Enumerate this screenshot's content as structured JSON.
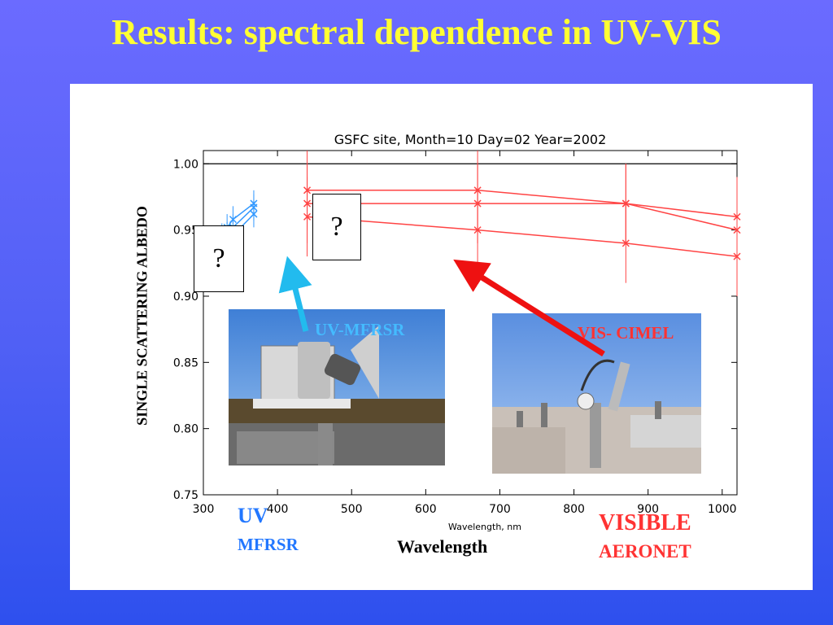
{
  "slide": {
    "title": "Results: spectral dependence in UV-VIS",
    "question_mark": "?",
    "ylabel": "SINGLE SCATTERING ALBEDO",
    "xlabel": "Wavelength",
    "uv_label_1": "UV",
    "uv_label_2": "MFRSR",
    "vis_label_1": "VISIBLE",
    "vis_label_2": "AERONET",
    "uv_instrument": "UV-MFRSR",
    "vis_instrument": "VIS- CIMEL"
  },
  "colors": {
    "title": "#ffff33",
    "uv_series": "#3399ff",
    "vis_series": "#ff4444",
    "arrow_uv": "#22bbee",
    "arrow_vis": "#ee1111",
    "uv_text": "#2277ff",
    "vis_text": "#ff3333"
  },
  "chart_data": {
    "type": "line",
    "title": "GSFC site, Month=10   Day=02   Year=2002",
    "xlabel": "Wavelength, nm",
    "xlim": [
      300,
      1020
    ],
    "ylim": [
      0.75,
      1.01
    ],
    "x_ticks": [
      300,
      400,
      500,
      600,
      700,
      800,
      900,
      1000
    ],
    "y_ticks": [
      0.75,
      0.8,
      0.85,
      0.9,
      0.95,
      1.0
    ],
    "y_tick_labels": [
      "0.75",
      "0.80",
      "0.85",
      "0.90",
      "0.95",
      "1.00"
    ],
    "reference_line": 1.0,
    "uv_series": [
      {
        "x": [
          325,
          332,
          340,
          368
        ],
        "values": [
          0.945,
          0.952,
          0.958,
          0.97
        ]
      },
      {
        "x": [
          325,
          332,
          340,
          368
        ],
        "values": [
          0.937,
          0.946,
          0.952,
          0.967
        ]
      },
      {
        "x": [
          325,
          332,
          340,
          368
        ],
        "values": [
          0.93,
          0.94,
          0.946,
          0.962
        ]
      }
    ],
    "uv_error_halfwidth": 0.01,
    "vis_series": [
      {
        "x": [
          440,
          670,
          870,
          1020
        ],
        "values": [
          0.98,
          0.98,
          0.97,
          0.96
        ]
      },
      {
        "x": [
          440,
          670,
          870,
          1020
        ],
        "values": [
          0.97,
          0.97,
          0.97,
          0.95
        ]
      },
      {
        "x": [
          440,
          670,
          870,
          1020
        ],
        "values": [
          0.96,
          0.95,
          0.94,
          0.93
        ]
      }
    ],
    "vis_error_halfwidth": 0.03
  }
}
